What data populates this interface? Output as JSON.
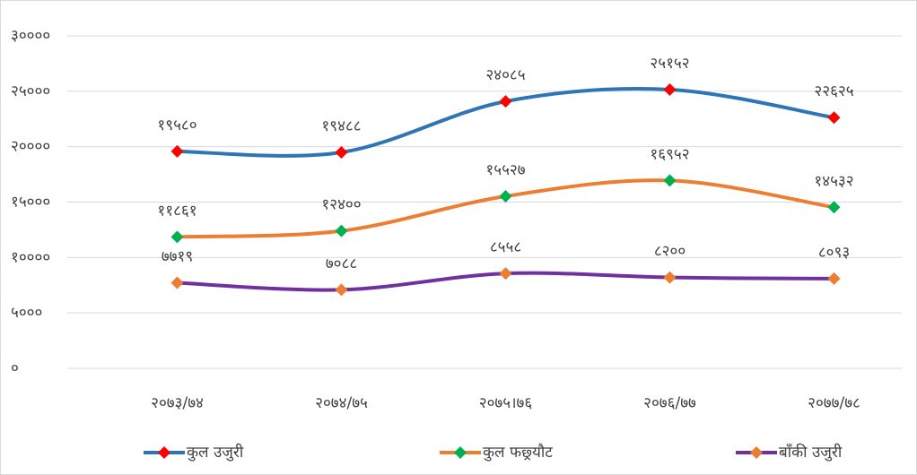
{
  "chart_data": {
    "type": "line",
    "categories": [
      "२०७३/७४",
      "२०७४/७५",
      "२०७५।७६",
      "२०७६/७७",
      "२०७७/७८"
    ],
    "series": [
      {
        "name": "कुल उजुरी",
        "color": "#2e75b6",
        "marker_color": "#ff0000",
        "values": [
          19580,
          19488,
          24085,
          25152,
          22625
        ],
        "value_labels": [
          "१९५८०",
          "१९४८८",
          "२४०८५",
          "२५१५२",
          "२२६२५"
        ]
      },
      {
        "name": "कुल फछ्र्यौट",
        "color": "#ed7d31",
        "marker_color": "#00b050",
        "values": [
          11861,
          12400,
          15527,
          16952,
          14532
        ],
        "value_labels": [
          "११८६१",
          "१२४००",
          "१५५२७",
          "१६९५२",
          "१४५३२"
        ]
      },
      {
        "name": "बाँकी उजुरी",
        "color": "#7030a0",
        "marker_color": "#ed7d31",
        "values": [
          7719,
          7088,
          8558,
          8200,
          8093
        ],
        "value_labels": [
          "७७१९",
          "७०८८",
          "८५५८",
          "८२००",
          "८०९३"
        ]
      }
    ],
    "ylim": [
      0,
      30000
    ],
    "yticks": [
      {
        "value": 0,
        "label": "०"
      },
      {
        "value": 5000,
        "label": "५०००"
      },
      {
        "value": 10000,
        "label": "१००००"
      },
      {
        "value": 15000,
        "label": "१५०००"
      },
      {
        "value": 20000,
        "label": "२००००"
      },
      {
        "value": 25000,
        "label": "२५०००"
      },
      {
        "value": 30000,
        "label": "३००००"
      }
    ],
    "grid": true,
    "smooth": true,
    "legend": "bottom"
  }
}
